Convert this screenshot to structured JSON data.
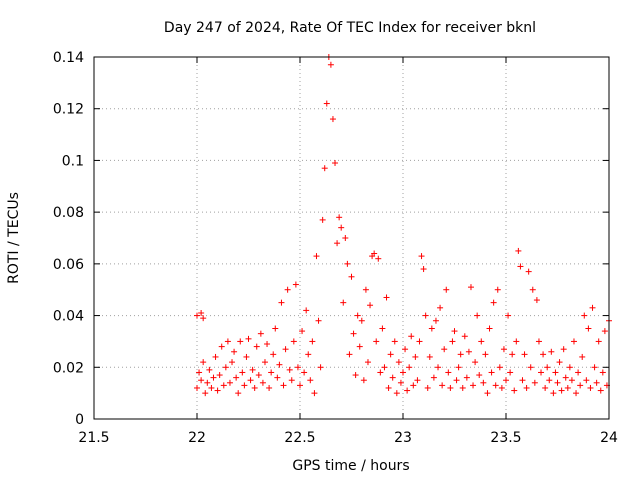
{
  "chart_data": {
    "type": "scatter",
    "title": "Day 247 of 2024, Rate Of TEC Index for receiver bknl",
    "xlabel": "GPS time / hours",
    "ylabel": "ROTI / TECUs",
    "xlim": [
      21.5,
      24
    ],
    "ylim": [
      0,
      0.14
    ],
    "xticks": [
      21.5,
      22,
      22.5,
      23,
      23.5,
      24
    ],
    "yticks": [
      0,
      0.02,
      0.04,
      0.06,
      0.08,
      0.1,
      0.12,
      0.14
    ],
    "xtick_labels": [
      "21.5",
      "22",
      "22.5",
      "23",
      "23.5",
      "24"
    ],
    "ytick_labels": [
      "0",
      "0.02",
      "0.04",
      "0.06",
      "0.08",
      "0.1",
      "0.12",
      "0.14"
    ],
    "grid": true,
    "marker": "+",
    "color": "#ff0000",
    "series": [
      {
        "name": "ROTI",
        "points": [
          [
            22.0,
            0.04
          ],
          [
            22.02,
            0.041
          ],
          [
            22.03,
            0.039
          ],
          [
            22.0,
            0.012
          ],
          [
            22.01,
            0.018
          ],
          [
            22.02,
            0.015
          ],
          [
            22.03,
            0.022
          ],
          [
            22.04,
            0.01
          ],
          [
            22.05,
            0.014
          ],
          [
            22.06,
            0.019
          ],
          [
            22.07,
            0.012
          ],
          [
            22.08,
            0.016
          ],
          [
            22.09,
            0.024
          ],
          [
            22.1,
            0.011
          ],
          [
            22.11,
            0.017
          ],
          [
            22.12,
            0.028
          ],
          [
            22.13,
            0.013
          ],
          [
            22.14,
            0.02
          ],
          [
            22.15,
            0.03
          ],
          [
            22.16,
            0.014
          ],
          [
            22.17,
            0.022
          ],
          [
            22.18,
            0.026
          ],
          [
            22.19,
            0.016
          ],
          [
            22.2,
            0.01
          ],
          [
            22.21,
            0.03
          ],
          [
            22.22,
            0.018
          ],
          [
            22.23,
            0.013
          ],
          [
            22.24,
            0.024
          ],
          [
            22.25,
            0.031
          ],
          [
            22.26,
            0.015
          ],
          [
            22.27,
            0.019
          ],
          [
            22.28,
            0.012
          ],
          [
            22.29,
            0.028
          ],
          [
            22.3,
            0.017
          ],
          [
            22.31,
            0.033
          ],
          [
            22.32,
            0.014
          ],
          [
            22.33,
            0.022
          ],
          [
            22.34,
            0.029
          ],
          [
            22.35,
            0.012
          ],
          [
            22.36,
            0.018
          ],
          [
            22.37,
            0.025
          ],
          [
            22.38,
            0.035
          ],
          [
            22.39,
            0.016
          ],
          [
            22.4,
            0.021
          ],
          [
            22.41,
            0.045
          ],
          [
            22.42,
            0.013
          ],
          [
            22.43,
            0.027
          ],
          [
            22.44,
            0.05
          ],
          [
            22.45,
            0.019
          ],
          [
            22.46,
            0.015
          ],
          [
            22.47,
            0.03
          ],
          [
            22.48,
            0.052
          ],
          [
            22.49,
            0.02
          ],
          [
            22.5,
            0.013
          ],
          [
            22.51,
            0.034
          ],
          [
            22.52,
            0.018
          ],
          [
            22.53,
            0.042
          ],
          [
            22.54,
            0.025
          ],
          [
            22.55,
            0.015
          ],
          [
            22.56,
            0.03
          ],
          [
            22.57,
            0.01
          ],
          [
            22.58,
            0.063
          ],
          [
            22.59,
            0.038
          ],
          [
            22.6,
            0.02
          ],
          [
            22.61,
            0.077
          ],
          [
            22.62,
            0.097
          ],
          [
            22.63,
            0.122
          ],
          [
            22.64,
            0.14
          ],
          [
            22.65,
            0.137
          ],
          [
            22.66,
            0.116
          ],
          [
            22.67,
            0.099
          ],
          [
            22.68,
            0.068
          ],
          [
            22.69,
            0.078
          ],
          [
            22.7,
            0.074
          ],
          [
            22.71,
            0.045
          ],
          [
            22.72,
            0.07
          ],
          [
            22.73,
            0.06
          ],
          [
            22.74,
            0.025
          ],
          [
            22.75,
            0.055
          ],
          [
            22.76,
            0.033
          ],
          [
            22.77,
            0.017
          ],
          [
            22.78,
            0.04
          ],
          [
            22.79,
            0.028
          ],
          [
            22.8,
            0.038
          ],
          [
            22.81,
            0.015
          ],
          [
            22.82,
            0.05
          ],
          [
            22.83,
            0.022
          ],
          [
            22.84,
            0.044
          ],
          [
            22.85,
            0.063
          ],
          [
            22.86,
            0.064
          ],
          [
            22.87,
            0.03
          ],
          [
            22.88,
            0.062
          ],
          [
            22.89,
            0.018
          ],
          [
            22.9,
            0.035
          ],
          [
            22.91,
            0.02
          ],
          [
            22.92,
            0.047
          ],
          [
            22.93,
            0.012
          ],
          [
            22.94,
            0.025
          ],
          [
            22.95,
            0.016
          ],
          [
            22.96,
            0.03
          ],
          [
            22.97,
            0.01
          ],
          [
            22.98,
            0.022
          ],
          [
            22.99,
            0.014
          ],
          [
            23.0,
            0.018
          ],
          [
            23.01,
            0.027
          ],
          [
            23.02,
            0.011
          ],
          [
            23.03,
            0.02
          ],
          [
            23.04,
            0.032
          ],
          [
            23.05,
            0.013
          ],
          [
            23.06,
            0.024
          ],
          [
            23.07,
            0.015
          ],
          [
            23.08,
            0.03
          ],
          [
            23.09,
            0.063
          ],
          [
            23.1,
            0.058
          ],
          [
            23.11,
            0.04
          ],
          [
            23.12,
            0.012
          ],
          [
            23.13,
            0.024
          ],
          [
            23.14,
            0.035
          ],
          [
            23.15,
            0.016
          ],
          [
            23.16,
            0.038
          ],
          [
            23.17,
            0.02
          ],
          [
            23.18,
            0.043
          ],
          [
            23.19,
            0.013
          ],
          [
            23.2,
            0.027
          ],
          [
            23.21,
            0.05
          ],
          [
            23.22,
            0.018
          ],
          [
            23.23,
            0.012
          ],
          [
            23.24,
            0.03
          ],
          [
            23.25,
            0.034
          ],
          [
            23.26,
            0.015
          ],
          [
            23.27,
            0.02
          ],
          [
            23.28,
            0.025
          ],
          [
            23.29,
            0.012
          ],
          [
            23.3,
            0.032
          ],
          [
            23.31,
            0.016
          ],
          [
            23.32,
            0.026
          ],
          [
            23.33,
            0.051
          ],
          [
            23.34,
            0.013
          ],
          [
            23.35,
            0.022
          ],
          [
            23.36,
            0.04
          ],
          [
            23.37,
            0.017
          ],
          [
            23.38,
            0.03
          ],
          [
            23.39,
            0.014
          ],
          [
            23.4,
            0.025
          ],
          [
            23.41,
            0.01
          ],
          [
            23.42,
            0.035
          ],
          [
            23.43,
            0.018
          ],
          [
            23.44,
            0.045
          ],
          [
            23.45,
            0.013
          ],
          [
            23.46,
            0.05
          ],
          [
            23.47,
            0.02
          ],
          [
            23.48,
            0.012
          ],
          [
            23.49,
            0.027
          ],
          [
            23.5,
            0.015
          ],
          [
            23.51,
            0.04
          ],
          [
            23.52,
            0.018
          ],
          [
            23.53,
            0.025
          ],
          [
            23.54,
            0.011
          ],
          [
            23.55,
            0.03
          ],
          [
            23.56,
            0.065
          ],
          [
            23.57,
            0.059
          ],
          [
            23.58,
            0.015
          ],
          [
            23.59,
            0.025
          ],
          [
            23.6,
            0.012
          ],
          [
            23.61,
            0.057
          ],
          [
            23.62,
            0.02
          ],
          [
            23.63,
            0.05
          ],
          [
            23.64,
            0.014
          ],
          [
            23.65,
            0.046
          ],
          [
            23.66,
            0.03
          ],
          [
            23.67,
            0.018
          ],
          [
            23.68,
            0.025
          ],
          [
            23.69,
            0.012
          ],
          [
            23.7,
            0.02
          ],
          [
            23.71,
            0.015
          ],
          [
            23.72,
            0.026
          ],
          [
            23.73,
            0.01
          ],
          [
            23.74,
            0.018
          ],
          [
            23.75,
            0.014
          ],
          [
            23.76,
            0.022
          ],
          [
            23.77,
            0.011
          ],
          [
            23.78,
            0.027
          ],
          [
            23.79,
            0.016
          ],
          [
            23.8,
            0.012
          ],
          [
            23.81,
            0.02
          ],
          [
            23.82,
            0.015
          ],
          [
            23.83,
            0.03
          ],
          [
            23.84,
            0.01
          ],
          [
            23.85,
            0.018
          ],
          [
            23.86,
            0.013
          ],
          [
            23.87,
            0.024
          ],
          [
            23.88,
            0.04
          ],
          [
            23.89,
            0.015
          ],
          [
            23.9,
            0.035
          ],
          [
            23.91,
            0.012
          ],
          [
            23.92,
            0.043
          ],
          [
            23.93,
            0.02
          ],
          [
            23.94,
            0.014
          ],
          [
            23.95,
            0.03
          ],
          [
            23.96,
            0.011
          ],
          [
            23.97,
            0.018
          ],
          [
            23.98,
            0.034
          ],
          [
            23.99,
            0.013
          ],
          [
            24.0,
            0.038
          ]
        ]
      }
    ]
  }
}
